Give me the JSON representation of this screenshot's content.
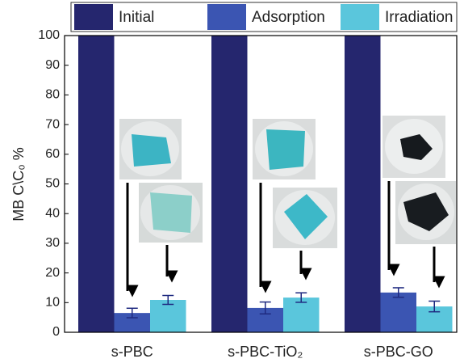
{
  "chart_data": {
    "type": "bar",
    "y_label": "MB C\\C₀ %",
    "categories": [
      "s-PBC",
      "s-PBC-TiO₂",
      "s-PBC-GO"
    ],
    "series": [
      {
        "name": "Initial",
        "color": "#25266e",
        "values": [
          100,
          100,
          100
        ]
      },
      {
        "name": "Adsorption",
        "color": "#3b55b2",
        "values": [
          6.5,
          8.2,
          13.4
        ],
        "errors": [
          1.6,
          2.0,
          1.6
        ]
      },
      {
        "name": "Irradiation",
        "color": "#5ac6dc",
        "values": [
          10.9,
          11.7,
          8.7
        ],
        "errors": [
          1.5,
          1.6,
          1.8
        ]
      }
    ],
    "ylim": [
      0,
      100
    ],
    "yticks": [
      0,
      10,
      20,
      30,
      40,
      50,
      60,
      70,
      80,
      90,
      100
    ]
  }
}
